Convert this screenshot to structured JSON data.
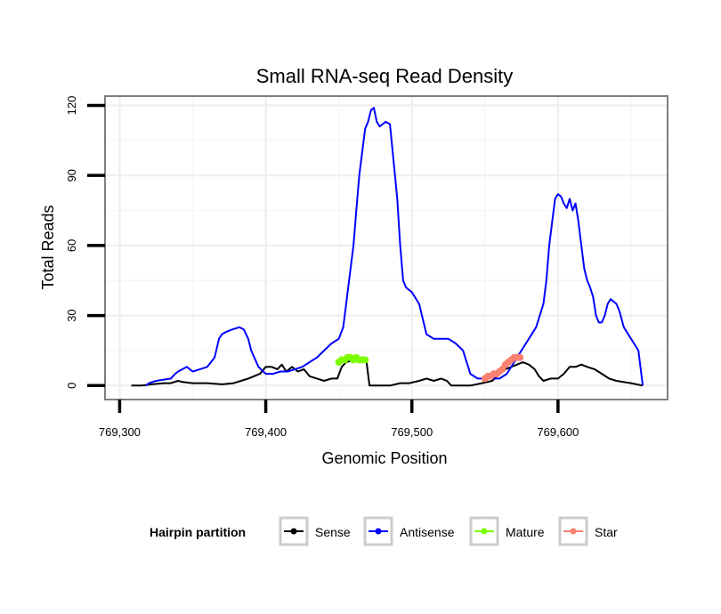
{
  "chart_data": {
    "type": "line",
    "title": "Small RNA-seq Read Density",
    "xlabel": "Genomic Position",
    "ylabel": "Total Reads",
    "xlim": [
      769290,
      769675
    ],
    "ylim": [
      -6,
      124
    ],
    "x_ticks": [
      769300,
      769400,
      769500,
      769600
    ],
    "x_tick_labels": [
      "769,300",
      "769,400",
      "769,500",
      "769,600"
    ],
    "y_ticks": [
      0,
      30,
      60,
      90,
      120
    ],
    "y_tick_labels": [
      "0",
      "30",
      "60",
      "90",
      "120"
    ],
    "grid": true,
    "legend": {
      "title": "Hairpin partition",
      "position": "bottom",
      "entries": [
        {
          "label": "Sense",
          "color": "#000000"
        },
        {
          "label": "Antisense",
          "color": "#0000ff"
        },
        {
          "label": "Mature",
          "color": "#7cfc00"
        },
        {
          "label": "Star",
          "color": "#fa8072"
        }
      ]
    },
    "series": [
      {
        "name": "Sense",
        "color": "#000000",
        "markers": false,
        "x": [
          769308,
          769315,
          769322,
          769330,
          769335,
          769340,
          769343,
          769350,
          769360,
          769370,
          769378,
          769383,
          769388,
          769392,
          769396,
          769400,
          769404,
          769408,
          769411,
          769414,
          769418,
          769422,
          769426,
          769430,
          769435,
          769440,
          769445,
          769449,
          769452,
          769455,
          769460,
          769465,
          769467,
          769469,
          769471,
          769475,
          769480,
          769485,
          769492,
          769498,
          769505,
          769510,
          769515,
          769520,
          769524,
          769527,
          769530,
          769540,
          769548,
          769555,
          769560,
          769564,
          769568,
          769572,
          769576,
          769580,
          769584,
          769587,
          769590,
          769595,
          769600,
          769604,
          769608,
          769612,
          769616,
          769620,
          769625,
          769630,
          769635,
          769640,
          769650,
          769658
        ],
        "y": [
          0,
          0,
          0.5,
          1,
          1,
          2,
          1.5,
          1,
          1,
          0.5,
          1,
          2,
          3,
          4,
          5,
          8,
          8,
          7,
          9,
          6,
          8,
          6,
          7,
          4,
          3,
          2,
          3,
          3,
          8,
          10,
          11,
          10,
          10,
          10,
          0,
          0,
          0,
          0,
          1,
          1,
          2,
          3,
          2,
          3,
          2,
          0,
          0,
          0,
          1,
          2,
          5,
          7,
          8,
          9,
          10,
          9,
          7,
          4,
          2,
          3,
          3,
          5,
          8,
          8,
          9,
          8,
          7,
          5,
          3,
          2,
          1,
          0
        ]
      },
      {
        "name": "Antisense",
        "color": "#0000ff",
        "markers": false,
        "x": [
          769318,
          769320,
          769325,
          769335,
          769338,
          769340,
          769343,
          769346,
          769350,
          769355,
          769360,
          769365,
          769368,
          769370,
          769373,
          769377,
          769382,
          769385,
          769388,
          769390,
          769395,
          769400,
          769405,
          769410,
          769415,
          769420,
          769425,
          769430,
          769435,
          769440,
          769445,
          769450,
          769453,
          769455,
          769458,
          769460,
          769462,
          769464,
          769466,
          769468,
          769470,
          769472,
          769474,
          769476,
          769478,
          769480,
          769482,
          769485,
          769490,
          769492,
          769494,
          769496,
          769500,
          769505,
          769510,
          769515,
          769520,
          769525,
          769530,
          769535,
          769540,
          769545,
          769550,
          769555,
          769560,
          769565,
          769570,
          769575,
          769580,
          769585,
          769590,
          769592,
          769594,
          769596,
          769598,
          769600,
          769602,
          769604,
          769606,
          769608,
          769610,
          769612,
          769614,
          769616,
          769618,
          769620,
          769622,
          769624,
          769626,
          769628,
          769630,
          769632,
          769634,
          769636,
          769640,
          769642,
          769645,
          769650,
          769655,
          769658
        ],
        "y": [
          0,
          1,
          2,
          3,
          5,
          6,
          7,
          8,
          6,
          7,
          8,
          12,
          20,
          22,
          23,
          24,
          25,
          24,
          20,
          15,
          8,
          5,
          5,
          6,
          6,
          7,
          8,
          10,
          12,
          15,
          18,
          20,
          25,
          35,
          50,
          60,
          75,
          90,
          100,
          110,
          113,
          118,
          119,
          113,
          111,
          112,
          113,
          112,
          80,
          60,
          45,
          42,
          40,
          35,
          22,
          20,
          20,
          20,
          18,
          15,
          5,
          3,
          3,
          3,
          3,
          5,
          10,
          15,
          20,
          25,
          35,
          45,
          60,
          70,
          80,
          82,
          81,
          78,
          76,
          80,
          75,
          78,
          70,
          60,
          50,
          45,
          42,
          38,
          30,
          27,
          27,
          30,
          35,
          37,
          35,
          32,
          25,
          20,
          15,
          0
        ]
      },
      {
        "name": "Mature",
        "color": "#7cfc00",
        "markers": true,
        "x": [
          769450,
          769452,
          769454,
          769456,
          769458,
          769460,
          769462,
          769464,
          769466,
          769468
        ],
        "y": [
          10,
          11,
          11,
          12,
          12,
          11,
          12,
          11,
          11,
          11
        ]
      },
      {
        "name": "Star",
        "color": "#fa8072",
        "markers": true,
        "x": [
          769550,
          769552,
          769554,
          769556,
          769558,
          769560,
          769562,
          769564,
          769566,
          769568,
          769570,
          769572,
          769574
        ],
        "y": [
          3,
          4,
          4,
          5,
          5,
          6,
          7,
          9,
          10,
          11,
          12,
          12,
          12
        ]
      }
    ]
  }
}
